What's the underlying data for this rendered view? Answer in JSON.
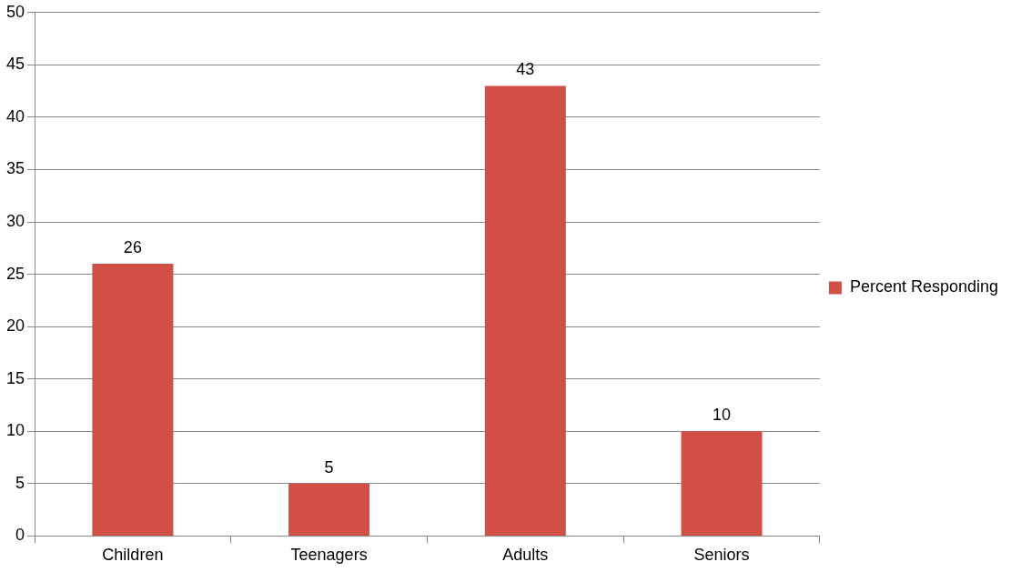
{
  "chart_data": {
    "type": "bar",
    "categories": [
      "Children",
      "Teenagers",
      "Adults",
      "Seniors"
    ],
    "series": [
      {
        "name": "Percent Responding",
        "color": "#d24f45",
        "values": [
          26,
          5,
          43,
          10
        ]
      }
    ],
    "ylim": [
      0,
      50
    ],
    "yticks": [
      0,
      5,
      10,
      15,
      20,
      25,
      30,
      35,
      40,
      45,
      50
    ],
    "grid": "y",
    "legend": "right",
    "data_labels": true
  }
}
